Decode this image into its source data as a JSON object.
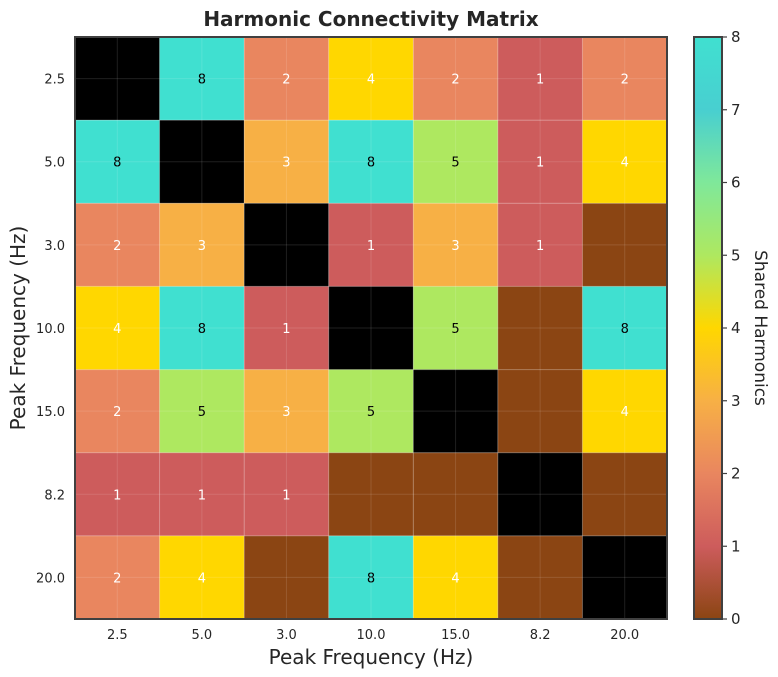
{
  "chart_data": {
    "type": "heatmap",
    "title": "Harmonic Connectivity Matrix",
    "xlabel": "Peak Frequency (Hz)",
    "ylabel": "Peak Frequency (Hz)",
    "x_categories": [
      "2.5",
      "5.0",
      "3.0",
      "10.0",
      "15.0",
      "8.2",
      "20.0"
    ],
    "y_categories": [
      "2.5",
      "5.0",
      "3.0",
      "10.0",
      "15.0",
      "8.2",
      "20.0"
    ],
    "values": [
      [
        null,
        8,
        2,
        4,
        2,
        1,
        2
      ],
      [
        8,
        null,
        3,
        8,
        5,
        1,
        4
      ],
      [
        2,
        3,
        null,
        1,
        3,
        1,
        0
      ],
      [
        4,
        8,
        1,
        null,
        5,
        0,
        8
      ],
      [
        2,
        5,
        3,
        5,
        null,
        0,
        4
      ],
      [
        1,
        1,
        1,
        0,
        0,
        null,
        0
      ],
      [
        2,
        4,
        0,
        8,
        4,
        0,
        null
      ]
    ],
    "diagonal_color": "#000000",
    "grid": true,
    "colorbar": {
      "label": "Shared Harmonics",
      "range": [
        0,
        8
      ],
      "ticks": [
        "0",
        "1",
        "2",
        "3",
        "4",
        "5",
        "6",
        "7",
        "8"
      ],
      "colors": [
        "#8b4513",
        "#cd5c5c",
        "#e9865f",
        "#f7b045",
        "#ffd700",
        "#aee860",
        "#7fe89a",
        "#48cfd0",
        "#40e0d0"
      ]
    }
  }
}
